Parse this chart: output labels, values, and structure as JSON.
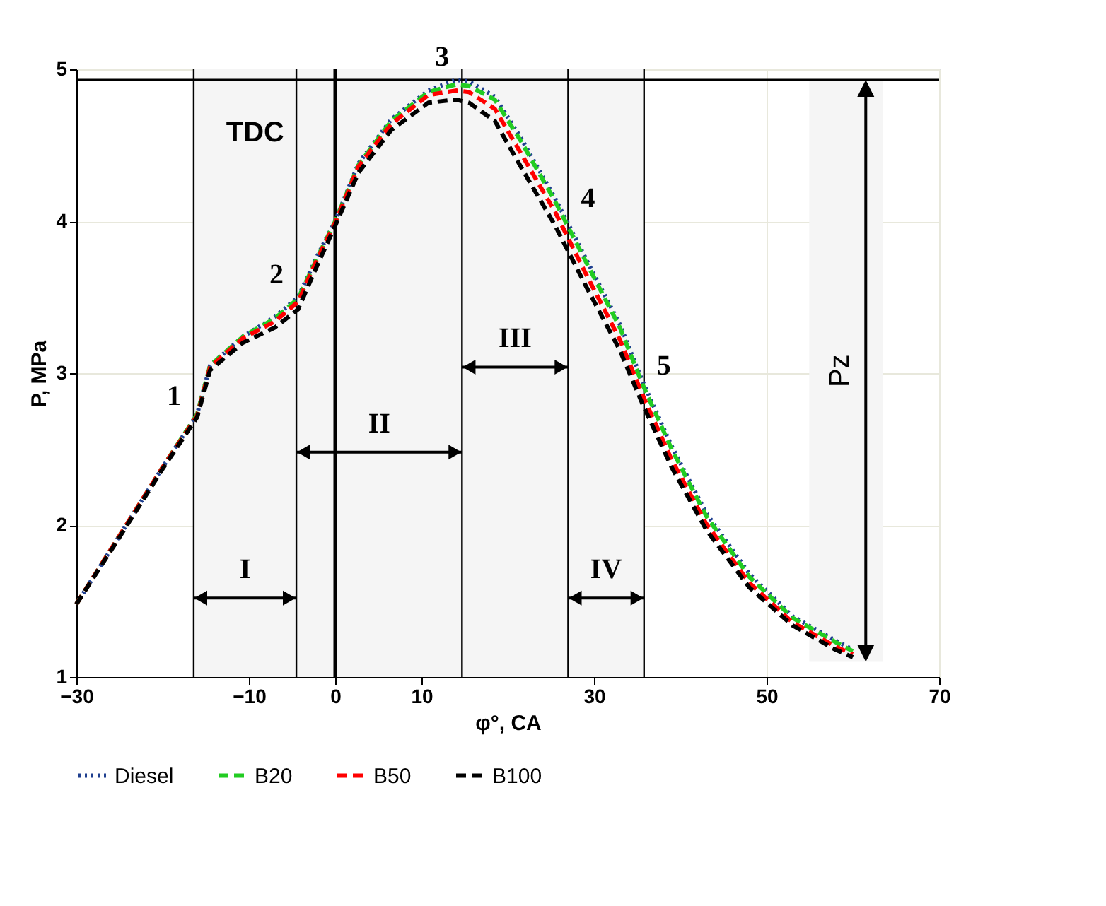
{
  "chart_data": {
    "type": "line",
    "xlabel": "φ°, CA",
    "ylabel": "P, MPa",
    "x": [
      -30,
      -25,
      -20,
      -16,
      -14.5,
      -10.7,
      -7,
      -4.3,
      -2,
      0,
      2.7,
      6.5,
      10.8,
      14,
      15.5,
      18.5,
      21.5,
      25.5,
      29,
      33,
      35.6,
      39,
      43,
      48,
      53,
      58,
      60
    ],
    "series": [
      {
        "name": "Diesel",
        "color": "#1f3f8f",
        "line_style": "dotted",
        "values": [
          1.48,
          1.93,
          2.38,
          2.73,
          3.05,
          3.24,
          3.37,
          3.5,
          3.78,
          4.0,
          4.38,
          4.67,
          4.86,
          4.93,
          4.92,
          4.82,
          4.55,
          4.15,
          3.76,
          3.32,
          2.95,
          2.52,
          2.08,
          1.68,
          1.4,
          1.24,
          1.18
        ]
      },
      {
        "name": "B20",
        "color": "#22cc22",
        "line_style": "dashed",
        "values": [
          1.48,
          1.93,
          2.38,
          2.73,
          3.05,
          3.24,
          3.36,
          3.49,
          3.77,
          4.0,
          4.37,
          4.66,
          4.85,
          4.9,
          4.89,
          4.8,
          4.53,
          4.13,
          3.74,
          3.3,
          2.93,
          2.5,
          2.06,
          1.66,
          1.39,
          1.23,
          1.17
        ]
      },
      {
        "name": "B50",
        "color": "#ff0000",
        "line_style": "dashed",
        "values": [
          1.48,
          1.93,
          2.38,
          2.72,
          3.04,
          3.23,
          3.34,
          3.47,
          3.76,
          3.99,
          4.36,
          4.64,
          4.83,
          4.86,
          4.85,
          4.74,
          4.45,
          4.06,
          3.66,
          3.22,
          2.86,
          2.43,
          2.01,
          1.62,
          1.36,
          1.2,
          1.15
        ]
      },
      {
        "name": "B100",
        "color": "#000000",
        "line_style": "dashed",
        "values": [
          1.48,
          1.92,
          2.37,
          2.71,
          3.02,
          3.2,
          3.3,
          3.42,
          3.72,
          3.97,
          4.32,
          4.6,
          4.78,
          4.8,
          4.78,
          4.66,
          4.36,
          3.97,
          3.58,
          3.15,
          2.8,
          2.38,
          1.97,
          1.59,
          1.34,
          1.18,
          1.13
        ]
      }
    ],
    "xlim": [
      -30,
      70
    ],
    "xticks": [
      -30,
      -10,
      0,
      10,
      30,
      50,
      70
    ],
    "ylim": [
      1,
      5
    ],
    "yticks": [
      1,
      2,
      3,
      4,
      5
    ],
    "grid": true,
    "legend": "bottom",
    "marker": "none",
    "ref_lines": [
      {
        "axis": "x",
        "value": 0,
        "label": "TDC"
      },
      {
        "axis": "x",
        "value": -16.4
      },
      {
        "axis": "x",
        "value": -4.5
      },
      {
        "axis": "x",
        "value": 14.7
      },
      {
        "axis": "x",
        "value": 27
      },
      {
        "axis": "x",
        "value": 35.8
      },
      {
        "axis": "y",
        "value": 4.93
      }
    ],
    "bands": [
      {
        "axis": "x",
        "from": -16.4,
        "to": -4.5,
        "label": "I",
        "color": "#f5f5f5"
      },
      {
        "axis": "x",
        "from": -4.5,
        "to": 14.7,
        "label": "II",
        "color": "#f5f5f5"
      },
      {
        "axis": "x",
        "from": 14.7,
        "to": 27,
        "label": "III",
        "color": "#f5f5f5"
      },
      {
        "axis": "x",
        "from": 27,
        "to": 35.8,
        "label": "IV",
        "color": "#f5f5f5"
      },
      {
        "axis": "y",
        "from": 1.1,
        "to": 4.93,
        "label": "Pz",
        "color": "#f5f5f5"
      }
    ],
    "annotations": [
      {
        "text": "1",
        "x": -16.4,
        "y": 2.7
      },
      {
        "text": "2",
        "x": -4.5,
        "y": 3.5
      },
      {
        "text": "3",
        "x": 14.7,
        "y": 4.93
      },
      {
        "text": "4",
        "x": 27,
        "y": 4.0
      },
      {
        "text": "5",
        "x": 35.8,
        "y": 2.9
      }
    ]
  }
}
